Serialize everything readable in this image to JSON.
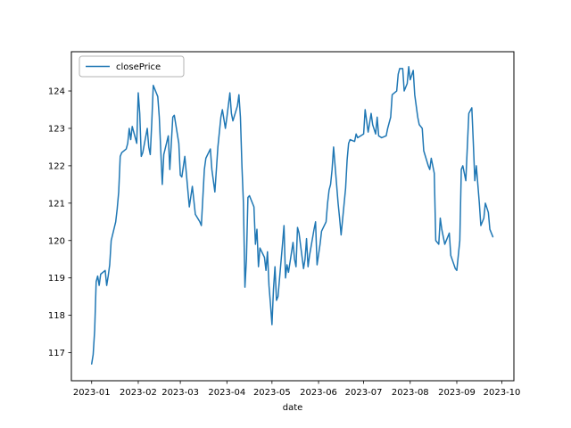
{
  "chart_data": {
    "type": "line",
    "title": "",
    "xlabel": "date",
    "ylabel": "",
    "legend": {
      "position": "upper left",
      "entries": [
        "closePrice"
      ]
    },
    "line_color": "#1f77b4",
    "xlim_days": [
      -13.5,
      281
    ],
    "ylim": [
      116.25,
      125.05
    ],
    "x_ticks": [
      {
        "label": "2023-01",
        "day": 0
      },
      {
        "label": "2023-02",
        "day": 31
      },
      {
        "label": "2023-03",
        "day": 59
      },
      {
        "label": "2023-04",
        "day": 90
      },
      {
        "label": "2023-05",
        "day": 120
      },
      {
        "label": "2023-06",
        "day": 151
      },
      {
        "label": "2023-07",
        "day": 181
      },
      {
        "label": "2023-08",
        "day": 212
      },
      {
        "label": "2023-09",
        "day": 243
      },
      {
        "label": "2023-10",
        "day": 273
      }
    ],
    "y_ticks": [
      117,
      118,
      119,
      120,
      121,
      122,
      123,
      124
    ],
    "series": [
      {
        "name": "closePrice",
        "color": "#1f77b4",
        "points": [
          [
            0,
            116.7
          ],
          [
            1,
            116.95
          ],
          [
            2,
            117.6
          ],
          [
            3,
            118.9
          ],
          [
            4,
            119.05
          ],
          [
            5,
            118.8
          ],
          [
            6,
            119.1
          ],
          [
            9,
            119.2
          ],
          [
            10,
            118.8
          ],
          [
            11,
            119.05
          ],
          [
            12,
            119.35
          ],
          [
            13,
            120.0
          ],
          [
            16,
            120.5
          ],
          [
            17,
            120.85
          ],
          [
            18,
            121.3
          ],
          [
            19,
            122.25
          ],
          [
            20,
            122.35
          ],
          [
            23,
            122.45
          ],
          [
            24,
            122.6
          ],
          [
            25,
            123.0
          ],
          [
            26,
            122.7
          ],
          [
            27,
            123.05
          ],
          [
            30,
            122.6
          ],
          [
            31,
            123.95
          ],
          [
            32,
            123.4
          ],
          [
            33,
            122.25
          ],
          [
            34,
            122.35
          ],
          [
            37,
            123.0
          ],
          [
            38,
            122.5
          ],
          [
            39,
            122.3
          ],
          [
            40,
            123.15
          ],
          [
            41,
            124.15
          ],
          [
            44,
            123.85
          ],
          [
            45,
            123.3
          ],
          [
            46,
            122.4
          ],
          [
            47,
            121.5
          ],
          [
            48,
            122.3
          ],
          [
            51,
            122.8
          ],
          [
            52,
            121.9
          ],
          [
            53,
            122.6
          ],
          [
            54,
            123.3
          ],
          [
            55,
            123.35
          ],
          [
            58,
            122.6
          ],
          [
            59,
            121.75
          ],
          [
            60,
            121.7
          ],
          [
            62,
            122.25
          ],
          [
            65,
            120.9
          ],
          [
            67,
            121.45
          ],
          [
            69,
            120.7
          ],
          [
            72,
            120.5
          ],
          [
            73,
            120.4
          ],
          [
            75,
            121.9
          ],
          [
            76,
            122.2
          ],
          [
            79,
            122.45
          ],
          [
            80,
            121.9
          ],
          [
            82,
            121.3
          ],
          [
            84,
            122.5
          ],
          [
            86,
            123.3
          ],
          [
            87,
            123.5
          ],
          [
            89,
            123.0
          ],
          [
            90,
            123.3
          ],
          [
            92,
            123.95
          ],
          [
            93,
            123.4
          ],
          [
            94,
            123.2
          ],
          [
            97,
            123.6
          ],
          [
            98,
            123.9
          ],
          [
            99,
            123.3
          ],
          [
            100,
            122.0
          ],
          [
            101,
            121.0
          ],
          [
            102,
            118.75
          ],
          [
            103,
            119.5
          ],
          [
            104,
            121.15
          ],
          [
            105,
            121.2
          ],
          [
            108,
            120.9
          ],
          [
            109,
            119.9
          ],
          [
            110,
            120.3
          ],
          [
            111,
            119.3
          ],
          [
            112,
            119.8
          ],
          [
            115,
            119.55
          ],
          [
            116,
            119.2
          ],
          [
            117,
            119.7
          ],
          [
            118,
            118.8
          ],
          [
            119,
            118.3
          ],
          [
            120,
            117.75
          ],
          [
            121,
            118.7
          ],
          [
            122,
            119.3
          ],
          [
            123,
            118.4
          ],
          [
            124,
            118.5
          ],
          [
            127,
            119.9
          ],
          [
            128,
            120.4
          ],
          [
            129,
            119.0
          ],
          [
            130,
            119.35
          ],
          [
            131,
            119.15
          ],
          [
            134,
            119.95
          ],
          [
            135,
            119.5
          ],
          [
            136,
            119.3
          ],
          [
            137,
            120.35
          ],
          [
            138,
            120.2
          ],
          [
            141,
            119.25
          ],
          [
            142,
            119.5
          ],
          [
            143,
            120.05
          ],
          [
            144,
            119.3
          ],
          [
            145,
            119.6
          ],
          [
            148,
            120.3
          ],
          [
            149,
            120.5
          ],
          [
            150,
            119.35
          ],
          [
            152,
            119.9
          ],
          [
            153,
            120.25
          ],
          [
            156,
            120.5
          ],
          [
            157,
            121.0
          ],
          [
            158,
            121.35
          ],
          [
            159,
            121.5
          ],
          [
            160,
            121.9
          ],
          [
            161,
            122.5
          ],
          [
            163,
            121.5
          ],
          [
            164,
            121.0
          ],
          [
            165,
            120.6
          ],
          [
            166,
            120.15
          ],
          [
            169,
            121.4
          ],
          [
            170,
            122.15
          ],
          [
            171,
            122.6
          ],
          [
            172,
            122.7
          ],
          [
            175,
            122.65
          ],
          [
            176,
            122.85
          ],
          [
            177,
            122.75
          ],
          [
            179,
            122.8
          ],
          [
            181,
            122.85
          ],
          [
            182,
            123.5
          ],
          [
            183,
            123.2
          ],
          [
            184,
            122.9
          ],
          [
            186,
            123.4
          ],
          [
            187,
            123.1
          ],
          [
            189,
            122.85
          ],
          [
            190,
            123.3
          ],
          [
            191,
            122.8
          ],
          [
            193,
            122.75
          ],
          [
            196,
            122.8
          ],
          [
            197,
            123.0
          ],
          [
            199,
            123.3
          ],
          [
            200,
            123.9
          ],
          [
            203,
            124.0
          ],
          [
            204,
            124.45
          ],
          [
            205,
            124.6
          ],
          [
            207,
            124.6
          ],
          [
            208,
            124.0
          ],
          [
            210,
            124.2
          ],
          [
            211,
            124.65
          ],
          [
            212,
            124.3
          ],
          [
            214,
            124.55
          ],
          [
            215,
            123.9
          ],
          [
            217,
            123.3
          ],
          [
            218,
            123.1
          ],
          [
            220,
            123.0
          ],
          [
            221,
            122.4
          ],
          [
            224,
            122.0
          ],
          [
            225,
            121.9
          ],
          [
            226,
            122.2
          ],
          [
            228,
            121.8
          ],
          [
            229,
            120.0
          ],
          [
            231,
            119.9
          ],
          [
            232,
            120.6
          ],
          [
            233,
            120.3
          ],
          [
            235,
            119.9
          ],
          [
            238,
            120.2
          ],
          [
            239,
            119.6
          ],
          [
            242,
            119.25
          ],
          [
            243,
            119.2
          ],
          [
            245,
            120.0
          ],
          [
            246,
            121.9
          ],
          [
            247,
            122.0
          ],
          [
            249,
            121.6
          ],
          [
            251,
            123.4
          ],
          [
            253,
            123.55
          ],
          [
            254,
            122.6
          ],
          [
            255,
            121.6
          ],
          [
            256,
            122.0
          ],
          [
            258,
            121.0
          ],
          [
            259,
            120.4
          ],
          [
            261,
            120.6
          ],
          [
            262,
            121.0
          ],
          [
            264,
            120.75
          ],
          [
            265,
            120.3
          ],
          [
            267,
            120.1
          ]
        ]
      }
    ]
  }
}
